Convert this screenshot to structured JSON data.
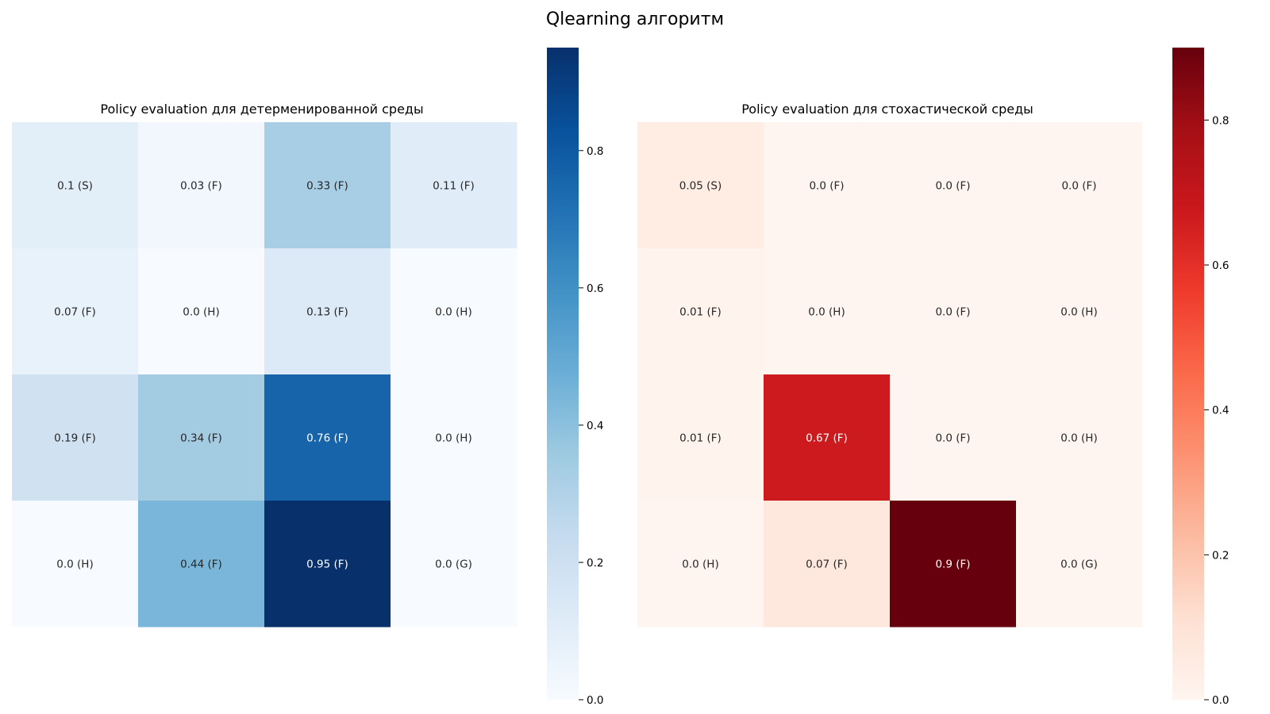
{
  "figure": {
    "suptitle": "Qlearning алгоритм"
  },
  "chart_data": [
    {
      "type": "heatmap",
      "title": "Policy evaluation для детерменированной среды",
      "colormap": "Blues",
      "colors": {
        "low": "#f7fbff",
        "high": "#08306b"
      },
      "vmin": 0.0,
      "vmax": 0.95,
      "colorbar_ticks": [
        "0.0",
        "0.2",
        "0.4",
        "0.6",
        "0.8"
      ],
      "grid": false,
      "values": [
        [
          0.1,
          0.03,
          0.33,
          0.11
        ],
        [
          0.07,
          0.0,
          0.13,
          0.0
        ],
        [
          0.19,
          0.34,
          0.76,
          0.0
        ],
        [
          0.0,
          0.44,
          0.95,
          0.0
        ]
      ],
      "annotations": [
        [
          "0.1 (S)",
          "0.03 (F)",
          "0.33 (F)",
          "0.11 (F)"
        ],
        [
          "0.07 (F)",
          "0.0 (H)",
          "0.13 (F)",
          "0.0 (H)"
        ],
        [
          "0.19 (F)",
          "0.34 (F)",
          "0.76 (F)",
          "0.0 (H)"
        ],
        [
          "0.0 (H)",
          "0.44 (F)",
          "0.95 (F)",
          "0.0 (G)"
        ]
      ]
    },
    {
      "type": "heatmap",
      "title": "Policy evaluation для стохастической среды",
      "colormap": "Reds",
      "colors": {
        "low": "#fff5f0",
        "high": "#67000d"
      },
      "vmin": 0.0,
      "vmax": 0.9,
      "colorbar_ticks": [
        "0.0",
        "0.2",
        "0.4",
        "0.6",
        "0.8"
      ],
      "grid": false,
      "values": [
        [
          0.05,
          0.0,
          0.0,
          0.0
        ],
        [
          0.01,
          0.0,
          0.0,
          0.0
        ],
        [
          0.01,
          0.67,
          0.0,
          0.0
        ],
        [
          0.0,
          0.07,
          0.9,
          0.0
        ]
      ],
      "annotations": [
        [
          "0.05 (S)",
          "0.0 (F)",
          "0.0 (F)",
          "0.0 (F)"
        ],
        [
          "0.01 (F)",
          "0.0 (H)",
          "0.0 (F)",
          "0.0 (H)"
        ],
        [
          "0.01 (F)",
          "0.67 (F)",
          "0.0 (F)",
          "0.0 (H)"
        ],
        [
          "0.0 (H)",
          "0.07 (F)",
          "0.9 (F)",
          "0.0 (G)"
        ]
      ]
    }
  ]
}
